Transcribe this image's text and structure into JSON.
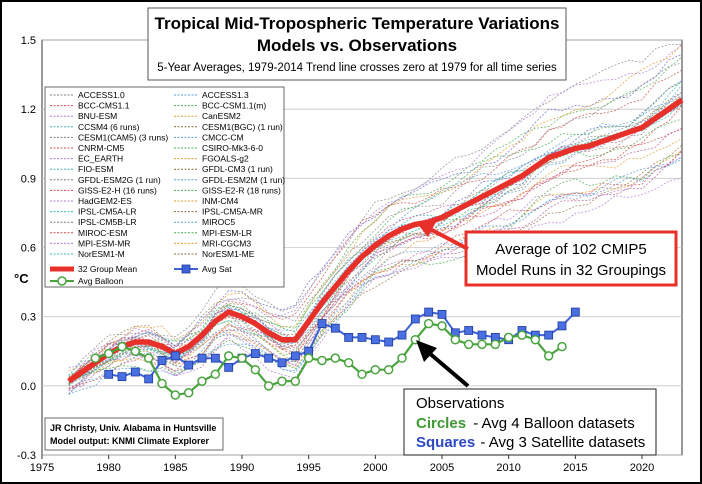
{
  "chart_data": {
    "type": "line",
    "title": "Tropical Mid-Tropospheric Temperature Variations",
    "subtitle": "Models vs. Observations",
    "caption": "5-Year Averages, 1979-2014 Trend line crosses zero at 1979 for all time series",
    "ylabel": "°C",
    "xlim": [
      1975,
      2023
    ],
    "ylim": [
      -0.3,
      1.5
    ],
    "x_ticks": [
      "1975",
      "1980",
      "1985",
      "1990",
      "1995",
      "2000",
      "2005",
      "2010",
      "2015",
      "2020"
    ],
    "y_ticks": [
      "-0.3",
      "0.0",
      "0.3",
      "0.6",
      "0.9",
      "1.2",
      "1.5"
    ],
    "legend": {
      "model_runs": [
        [
          "ACCESS1.0",
          "ACCESS1.3"
        ],
        [
          "BCC-CMS1.1",
          "BCC-CSM1.1(m)"
        ],
        [
          "BNU-ESM",
          "CanESM2"
        ],
        [
          "CCSM4 (6 runs)",
          "CESM1(BGC) (1 run)"
        ],
        [
          "CESM1(CAM5) (3 runs)",
          "CMCC-CM"
        ],
        [
          "CNRM-CM5",
          "CSIRO-Mk3-6-0"
        ],
        [
          "EC_EARTH",
          "FGOALS-g2"
        ],
        [
          "FIO-ESM",
          "GFDL-CM3 (1 run)"
        ],
        [
          "GFDL-ESM2G (1 run)",
          "GFDL-ESM2M (1 run)"
        ],
        [
          "GISS-E2-H (16 runs)",
          "GISS-E2-R (18 runs)"
        ],
        [
          "HadGEM2-ES",
          "INM-CM4"
        ],
        [
          "IPSL-CM5A-LR",
          "IPSL-CM5A-MR"
        ],
        [
          "IPSL-CM5B-LR",
          "MIROC5"
        ],
        [
          "MIROC-ESM",
          "MPI-ESM-LR"
        ],
        [
          "MPI-ESM-MR",
          "MRI-CGCM3"
        ],
        [
          "NorESM1-M",
          "NorESM1-ME"
        ]
      ],
      "mean": "32 Group Mean",
      "sat": "Avg Sat",
      "balloon": "Avg Balloon"
    },
    "series": [
      {
        "name": "32 Group Mean",
        "color": "#e8302a",
        "x": [
          1977,
          1978,
          1979,
          1980,
          1981,
          1982,
          1983,
          1984,
          1985,
          1986,
          1987,
          1988,
          1989,
          1990,
          1991,
          1992,
          1993,
          1994,
          1995,
          1996,
          1997,
          1998,
          1999,
          2000,
          2001,
          2002,
          2003,
          2004,
          2005,
          2006,
          2007,
          2008,
          2009,
          2010,
          2011,
          2012,
          2013,
          2014,
          2015,
          2016,
          2017,
          2018,
          2019,
          2020,
          2021,
          2022,
          2023
        ],
        "y": [
          0.02,
          0.06,
          0.1,
          0.14,
          0.17,
          0.19,
          0.19,
          0.17,
          0.14,
          0.17,
          0.22,
          0.28,
          0.32,
          0.3,
          0.27,
          0.23,
          0.2,
          0.2,
          0.28,
          0.36,
          0.43,
          0.5,
          0.56,
          0.61,
          0.65,
          0.68,
          0.7,
          0.71,
          0.73,
          0.76,
          0.79,
          0.82,
          0.85,
          0.88,
          0.91,
          0.95,
          0.99,
          1.01,
          1.03,
          1.04,
          1.06,
          1.08,
          1.1,
          1.12,
          1.16,
          1.2,
          1.24
        ]
      },
      {
        "name": "Avg Sat",
        "color": "#3d62d8",
        "x": [
          1980,
          1981,
          1982,
          1983,
          1984,
          1985,
          1986,
          1987,
          1988,
          1989,
          1990,
          1991,
          1992,
          1993,
          1994,
          1995,
          1996,
          1997,
          1998,
          1999,
          2000,
          2001,
          2002,
          2003,
          2004,
          2005,
          2006,
          2007,
          2008,
          2009,
          2010,
          2011,
          2012,
          2013,
          2014,
          2015
        ],
        "y": [
          0.05,
          0.04,
          0.06,
          0.03,
          0.11,
          0.13,
          0.09,
          0.12,
          0.12,
          0.08,
          0.12,
          0.14,
          0.12,
          0.1,
          0.13,
          0.15,
          0.27,
          0.25,
          0.21,
          0.21,
          0.2,
          0.19,
          0.22,
          0.29,
          0.32,
          0.31,
          0.23,
          0.24,
          0.22,
          0.21,
          0.2,
          0.24,
          0.22,
          0.22,
          0.26,
          0.32
        ]
      },
      {
        "name": "Avg Balloon",
        "color": "#49a43d",
        "x": [
          1979,
          1980,
          1981,
          1982,
          1983,
          1984,
          1985,
          1986,
          1987,
          1988,
          1989,
          1990,
          1991,
          1992,
          1993,
          1994,
          1995,
          1996,
          1997,
          1998,
          1999,
          2000,
          2001,
          2002,
          2003,
          2004,
          2005,
          2006,
          2007,
          2008,
          2009,
          2010,
          2011,
          2012,
          2013,
          2014
        ],
        "y": [
          0.12,
          0.14,
          0.17,
          0.15,
          0.12,
          0.01,
          -0.04,
          -0.03,
          0.02,
          0.05,
          0.13,
          0.12,
          0.07,
          0.0,
          0.02,
          0.02,
          0.12,
          0.11,
          0.12,
          0.1,
          0.05,
          0.07,
          0.07,
          0.12,
          0.2,
          0.27,
          0.26,
          0.2,
          0.18,
          0.18,
          0.18,
          0.21,
          0.22,
          0.2,
          0.13,
          0.17
        ]
      }
    ],
    "annotations": {
      "model_callout": [
        "Average of 102 CMIP5",
        "Model Runs in 32 Groupings"
      ],
      "obs_title": "Observations",
      "obs_circles_key": "Circles",
      "obs_circles_rest": "- Avg 4 Balloon datasets",
      "obs_squares_key": "Squares",
      "obs_squares_rest": "- Avg 3 Satellite datasets",
      "credit_line1": "JR Christy, Univ. Alabama in Huntsville",
      "credit_line2": "Model output: KNMI Climate Explorer"
    }
  }
}
